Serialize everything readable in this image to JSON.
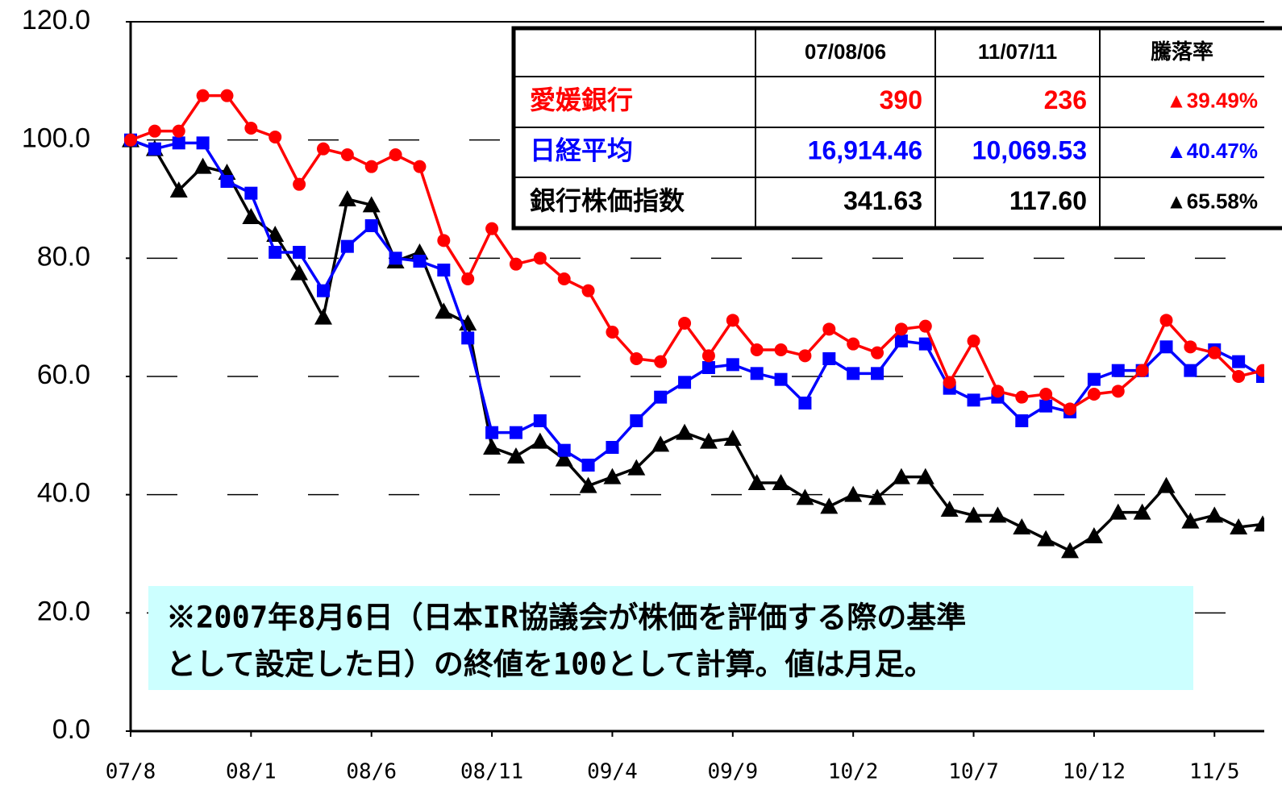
{
  "chart_data": {
    "type": "line",
    "categories": [
      "07/8",
      null,
      null,
      null,
      null,
      "08/1",
      null,
      null,
      null,
      null,
      "08/6",
      null,
      null,
      null,
      null,
      "08/11",
      null,
      null,
      null,
      null,
      "09/4",
      null,
      null,
      null,
      null,
      "09/9",
      null,
      null,
      null,
      null,
      "10/2",
      null,
      null,
      null,
      null,
      "10/7",
      null,
      null,
      null,
      null,
      "10/12",
      null,
      null,
      null,
      null,
      "11/5",
      null,
      null
    ],
    "series": [
      {
        "name": "愛媛銀行",
        "color": "#ff0000",
        "marker": "circle",
        "values": [
          100,
          101.5,
          101.5,
          107.5,
          107.5,
          102,
          100.5,
          92.5,
          98.5,
          97.5,
          95.5,
          97.5,
          95.5,
          83,
          76.5,
          85,
          79,
          80,
          76.5,
          74.5,
          67.5,
          63,
          62.5,
          69,
          63.5,
          69.5,
          64.5,
          64.5,
          63.5,
          68,
          65.5,
          64,
          68,
          68.5,
          59,
          66,
          57.5,
          56.5,
          57,
          54.5,
          57,
          57.5,
          61,
          69.5,
          65,
          64,
          60,
          61
        ]
      },
      {
        "name": "日経平均",
        "color": "#0000ff",
        "marker": "square",
        "values": [
          100,
          98.5,
          99.5,
          99.5,
          93,
          91,
          81,
          81,
          74.5,
          82,
          85.5,
          80,
          79.5,
          78,
          66.5,
          50.5,
          50.5,
          52.5,
          47.5,
          45,
          48,
          52.5,
          56.5,
          59,
          61.5,
          62,
          60.5,
          59.5,
          55.5,
          63,
          60.5,
          60.5,
          66,
          65.5,
          58,
          56,
          56.5,
          52.5,
          55,
          54,
          59.5,
          61,
          61,
          65,
          61,
          64.5,
          62.5,
          60
        ]
      },
      {
        "name": "銀行株価指数",
        "color": "#000000",
        "marker": "triangle",
        "values": [
          100,
          98.5,
          91.5,
          95.5,
          94.5,
          87,
          84,
          77.5,
          70,
          90,
          89,
          79.5,
          81,
          71,
          69,
          48,
          46.5,
          49,
          46,
          41.5,
          43,
          44.5,
          48.5,
          50.5,
          49,
          49.5,
          42,
          42,
          39.5,
          38,
          40,
          39.5,
          43,
          43,
          37.5,
          36.5,
          36.5,
          34.5,
          32.5,
          30.5,
          33,
          37,
          37,
          41.5,
          35.5,
          36.5,
          34.5,
          35
        ]
      }
    ],
    "ylim": [
      0,
      120
    ],
    "yticks": [
      {
        "value": 0,
        "label": "0.0"
      },
      {
        "value": 20,
        "label": "20.0"
      },
      {
        "value": 40,
        "label": "40.0"
      },
      {
        "value": 60,
        "label": "60.0"
      },
      {
        "value": 80,
        "label": "80.0"
      },
      {
        "value": 100,
        "label": "100.0"
      },
      {
        "value": 120,
        "label": "120.0"
      }
    ],
    "grid": true,
    "annotation": [
      "※2007年8月6日（日本IR協議会が株価を評価する際の基準",
      "として設定した日）の終値を100として計算。値は月足。"
    ],
    "table": {
      "headers": [
        "07/08/06",
        "11/07/11",
        "騰落率"
      ],
      "rows": [
        [
          "愛媛銀行",
          "390",
          "236",
          "▲39.49%"
        ],
        [
          "日経平均",
          "16,914.46",
          "10,069.53",
          "▲40.47%"
        ],
        [
          "銀行株価指数",
          "341.63",
          "117.60",
          "▲65.58%"
        ]
      ]
    }
  }
}
